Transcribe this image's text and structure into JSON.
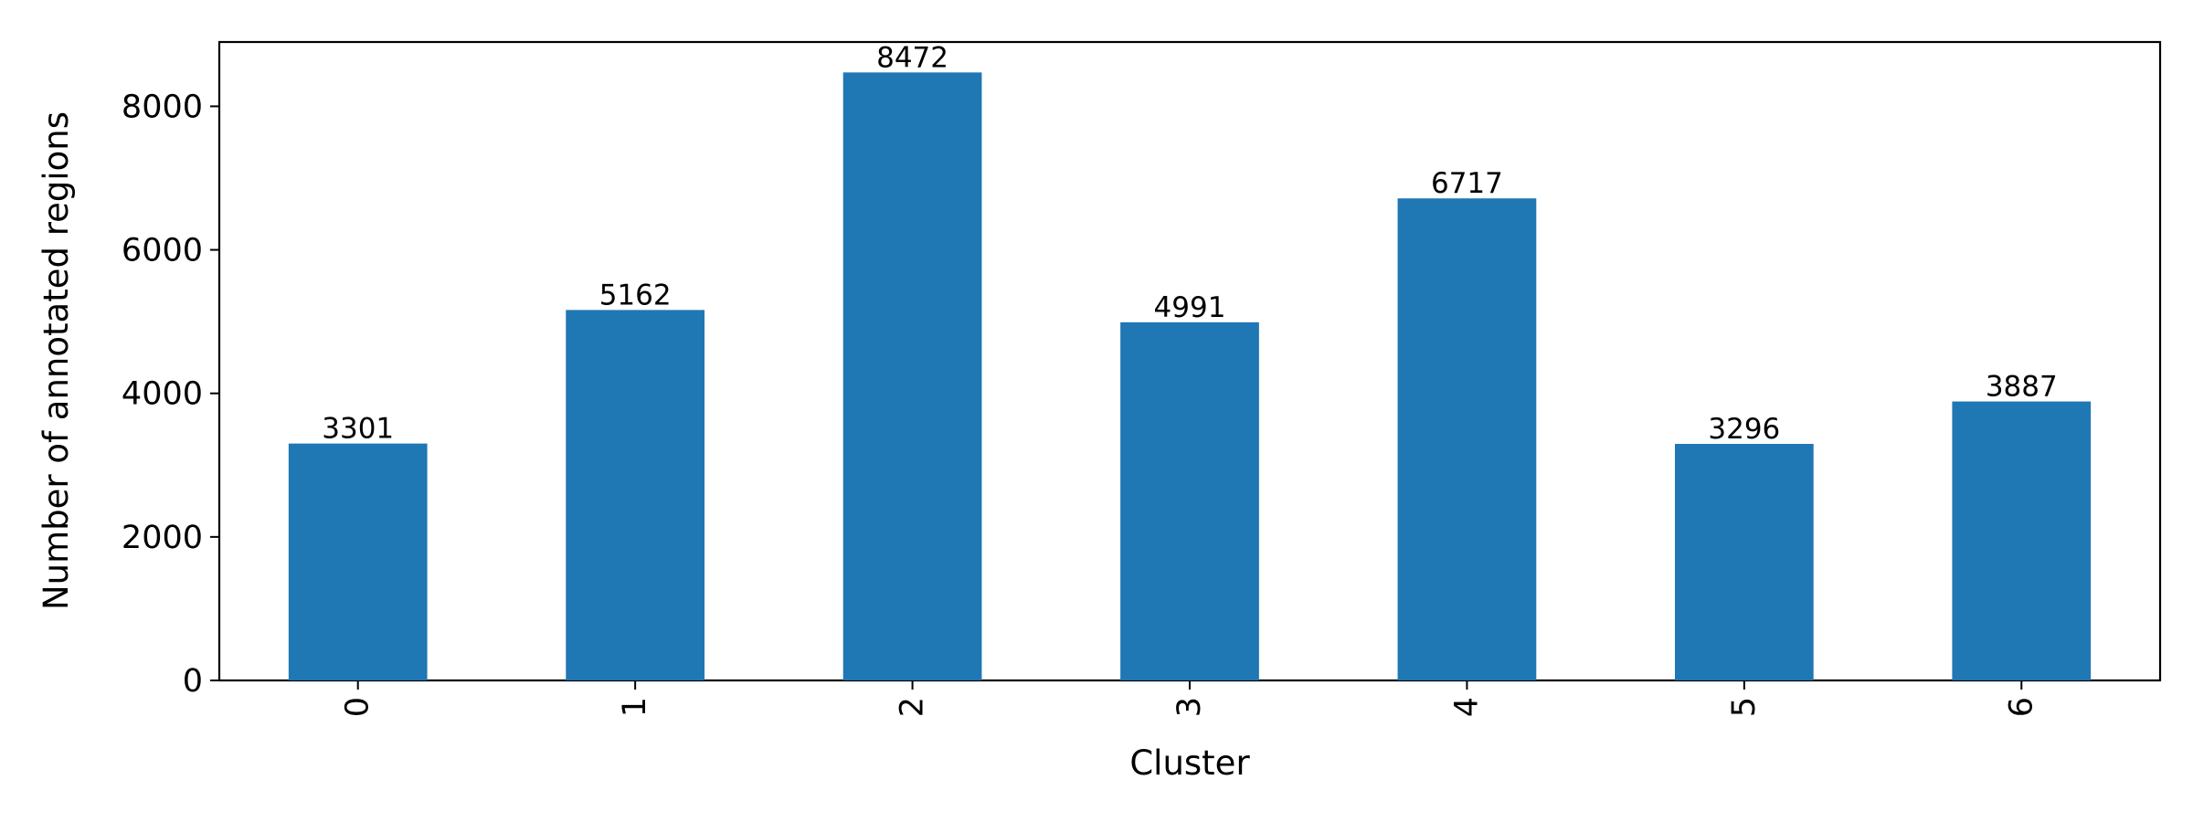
{
  "chart_data": {
    "type": "bar",
    "title": "",
    "xlabel": "Cluster",
    "ylabel": "Number of annotated regions",
    "categories": [
      "0",
      "1",
      "2",
      "3",
      "4",
      "5",
      "6"
    ],
    "values": [
      3301,
      5162,
      8472,
      4991,
      6717,
      3296,
      3887
    ],
    "data_labels": [
      "3301",
      "5162",
      "8472",
      "4991",
      "6717",
      "3296",
      "3887"
    ],
    "yticks": [
      0,
      2000,
      4000,
      6000,
      8000
    ],
    "ytick_labels": [
      "0",
      "2000",
      "4000",
      "6000",
      "8000"
    ],
    "ylim": [
      0,
      8896
    ],
    "grid": false,
    "legend": "none",
    "x_tick_rotation": 90,
    "colors": {
      "bar": "#1f77b4",
      "axis": "#000000",
      "background": "#ffffff"
    }
  }
}
